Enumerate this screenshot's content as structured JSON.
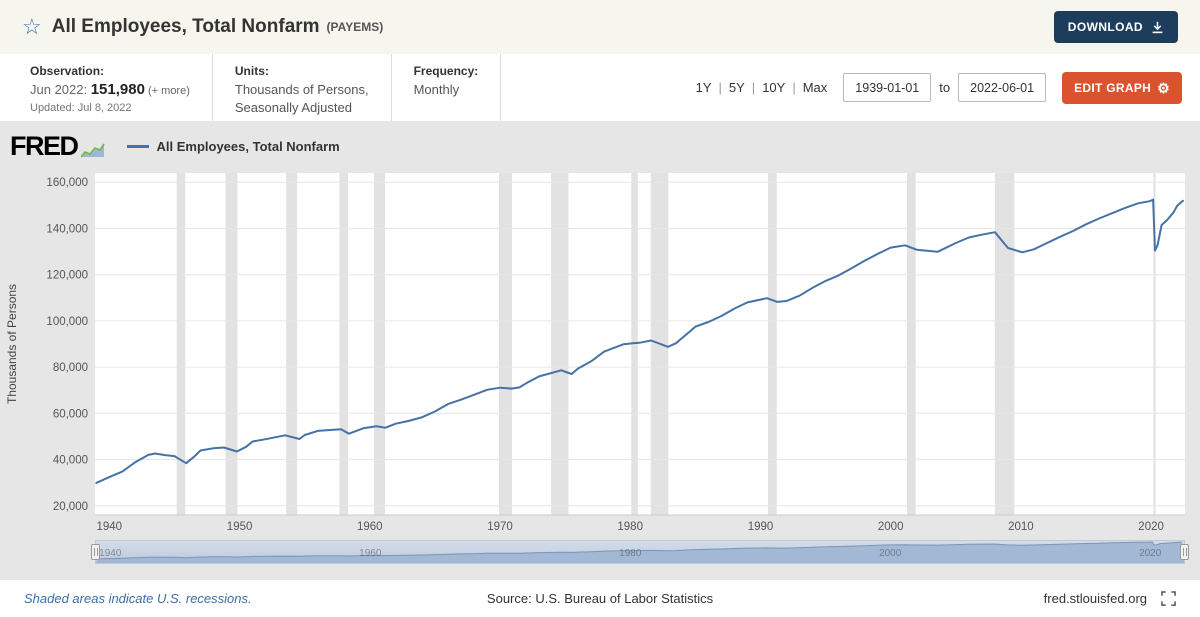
{
  "header": {
    "title": "All Employees, Total Nonfarm",
    "series_id": "(PAYEMS)",
    "download_label": "DOWNLOAD"
  },
  "infobar": {
    "observation_label": "Observation:",
    "observation_date": "Jun 2022: ",
    "observation_value": "151,980",
    "observation_more": " (+ more)",
    "updated": "Updated: Jul 8, 2022",
    "units_label": "Units:",
    "units_line1": "Thousands of Persons,",
    "units_line2": "Seasonally Adjusted",
    "frequency_label": "Frequency:",
    "frequency_value": "Monthly",
    "ranges": [
      "1Y",
      "5Y",
      "10Y",
      "Max"
    ],
    "range_separator": "|",
    "date_start": "1939-01-01",
    "date_to_label": "to",
    "date_end": "2022-06-01",
    "edit_graph_label": "EDIT GRAPH",
    "gear_icon": "⚙"
  },
  "chart": {
    "logo": "FRED",
    "legend_label": "All Employees, Total Nonfarm",
    "line_color": "#4572a7"
  },
  "footer": {
    "recession_note": "Shaded areas indicate U.S. recessions.",
    "source": "Source: U.S. Bureau of Labor Statistics",
    "site": "fred.stlouisfed.org"
  },
  "chart_data": {
    "type": "line",
    "title": "All Employees, Total Nonfarm (PAYEMS)",
    "xlabel": "",
    "ylabel": "Thousands of Persons",
    "xlim": [
      1938.9,
      2022.6
    ],
    "ylim": [
      16000,
      164000
    ],
    "yticks": [
      20000,
      40000,
      60000,
      80000,
      100000,
      120000,
      140000,
      160000
    ],
    "xticks": [
      1940,
      1950,
      1960,
      1970,
      1980,
      1990,
      2000,
      2010,
      2020
    ],
    "grid": true,
    "legend": [
      "All Employees, Total Nonfarm"
    ],
    "x": [
      1939.0,
      1940,
      1941,
      1942,
      1943,
      1943.5,
      1944.3,
      1945.0,
      1945.9,
      1946.5,
      1947,
      1948,
      1948.8,
      1949.8,
      1950.5,
      1951,
      1952,
      1953.5,
      1954.6,
      1955,
      1956,
      1957.8,
      1958.4,
      1959.5,
      1960.5,
      1961.2,
      1962,
      1963,
      1964,
      1965,
      1966,
      1967,
      1968,
      1969,
      1970.0,
      1970.9,
      1971.5,
      1972,
      1973,
      1974.7,
      1975.5,
      1976,
      1977,
      1978,
      1979.5,
      1980.2,
      1980.7,
      1981.6,
      1982.9,
      1983.5,
      1984.5,
      1985,
      1986,
      1987,
      1988,
      1989,
      1990.5,
      1991.3,
      1992,
      1993,
      1994,
      1995,
      1996,
      1997,
      1998,
      1999,
      2000,
      2001.1,
      2002,
      2003.6,
      2005,
      2006,
      2007,
      2008.0,
      2009.0,
      2010.1,
      2011,
      2012,
      2013,
      2014,
      2015,
      2016,
      2017,
      2018,
      2019,
      2019.9,
      2020.15,
      2020.3,
      2020.5,
      2020.8,
      2021.2,
      2021.7,
      2022.0,
      2022.45
    ],
    "values": [
      29900,
      32400,
      34800,
      38900,
      42000,
      42600,
      41900,
      41500,
      38400,
      41200,
      43900,
      44900,
      45200,
      43500,
      45500,
      47800,
      48800,
      50500,
      48900,
      50600,
      52400,
      53100,
      51200,
      53500,
      54400,
      53800,
      55500,
      56700,
      58300,
      60800,
      64000,
      65900,
      68000,
      70200,
      71100,
      70700,
      71200,
      73000,
      76000,
      78600,
      77000,
      79400,
      82500,
      86700,
      89900,
      90300,
      90500,
      91500,
      88800,
      90300,
      95000,
      97500,
      99500,
      102100,
      105300,
      108000,
      109800,
      108200,
      108600,
      110900,
      114300,
      117300,
      119700,
      122800,
      126000,
      129000,
      131700,
      132700,
      130800,
      129900,
      133700,
      136100,
      137300,
      138400,
      131600,
      129700,
      131000,
      133700,
      136400,
      138900,
      141800,
      144300,
      146600,
      148900,
      150900,
      151800,
      152500,
      130400,
      133000,
      141500,
      143500,
      146800,
      149800,
      151980
    ],
    "recessions": [
      [
        1945.17,
        1945.83
      ],
      [
        1948.92,
        1949.83
      ],
      [
        1953.58,
        1954.42
      ],
      [
        1957.67,
        1958.33
      ],
      [
        1960.33,
        1961.17
      ],
      [
        1969.92,
        1970.92
      ],
      [
        1973.92,
        1975.25
      ],
      [
        1980.08,
        1980.58
      ],
      [
        1981.58,
        1982.92
      ],
      [
        1990.58,
        1991.25
      ],
      [
        2001.25,
        2001.92
      ],
      [
        2008.0,
        2009.5
      ],
      [
        2020.17,
        2020.33
      ]
    ],
    "navigator_labels": [
      1940,
      1960,
      1980,
      2000,
      2020
    ]
  }
}
